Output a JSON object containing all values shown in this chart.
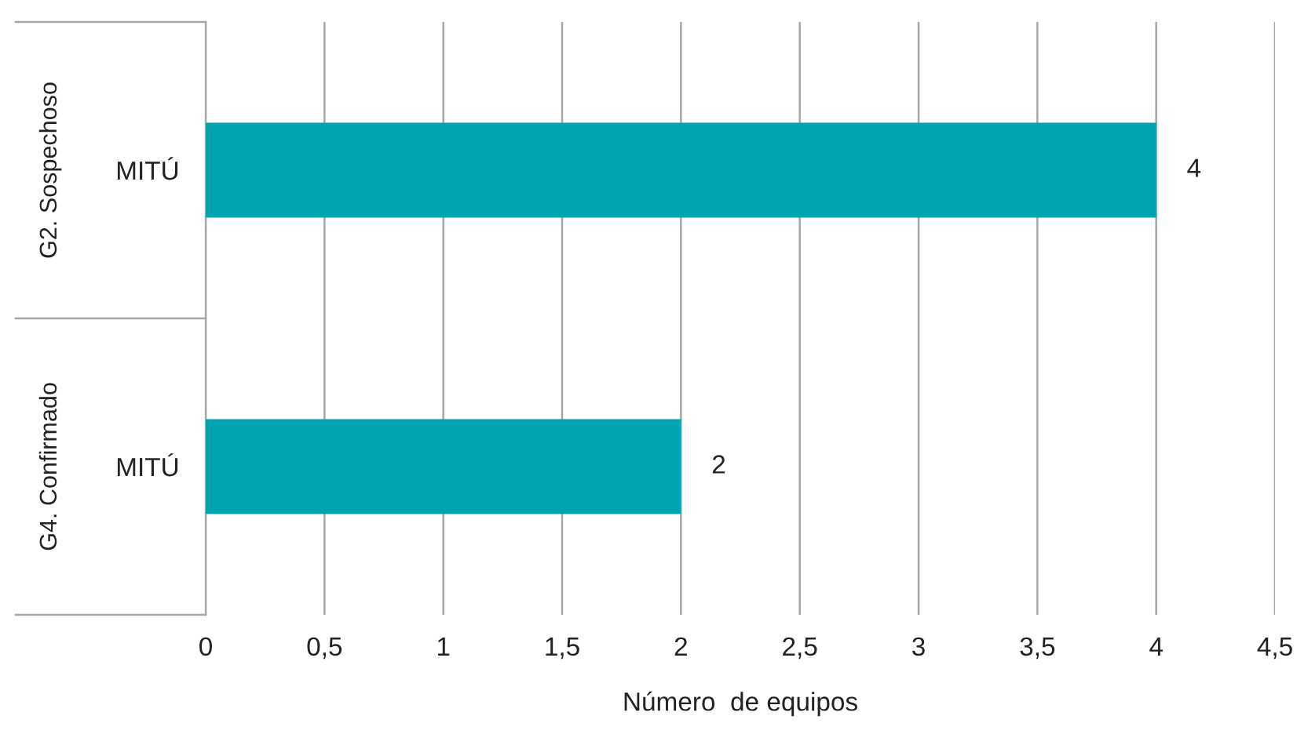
{
  "chart_data": {
    "type": "bar",
    "orientation": "horizontal",
    "categories": [
      "MITÚ",
      "MITÚ"
    ],
    "values": [
      4,
      2
    ],
    "color": "#00a3b0",
    "xlabel": "Número  de equipos",
    "annotations": [
      "G2. Sospechoso",
      "G4. Confirmado"
    ],
    "xlim": [
      0,
      4.5
    ],
    "xticks": [
      0,
      {
        "value": 0.5,
        "label": "0,5"
      },
      1,
      {
        "value": 1.5,
        "label": "1,5"
      },
      2,
      {
        "value": 2.5,
        "label": "2,5"
      },
      3,
      {
        "value": 3.5,
        "label": "3,5"
      },
      4,
      {
        "value": 4.5,
        "label": "4,5"
      }
    ],
    "grid": "x",
    "data_labels": true,
    "legend": false
  }
}
